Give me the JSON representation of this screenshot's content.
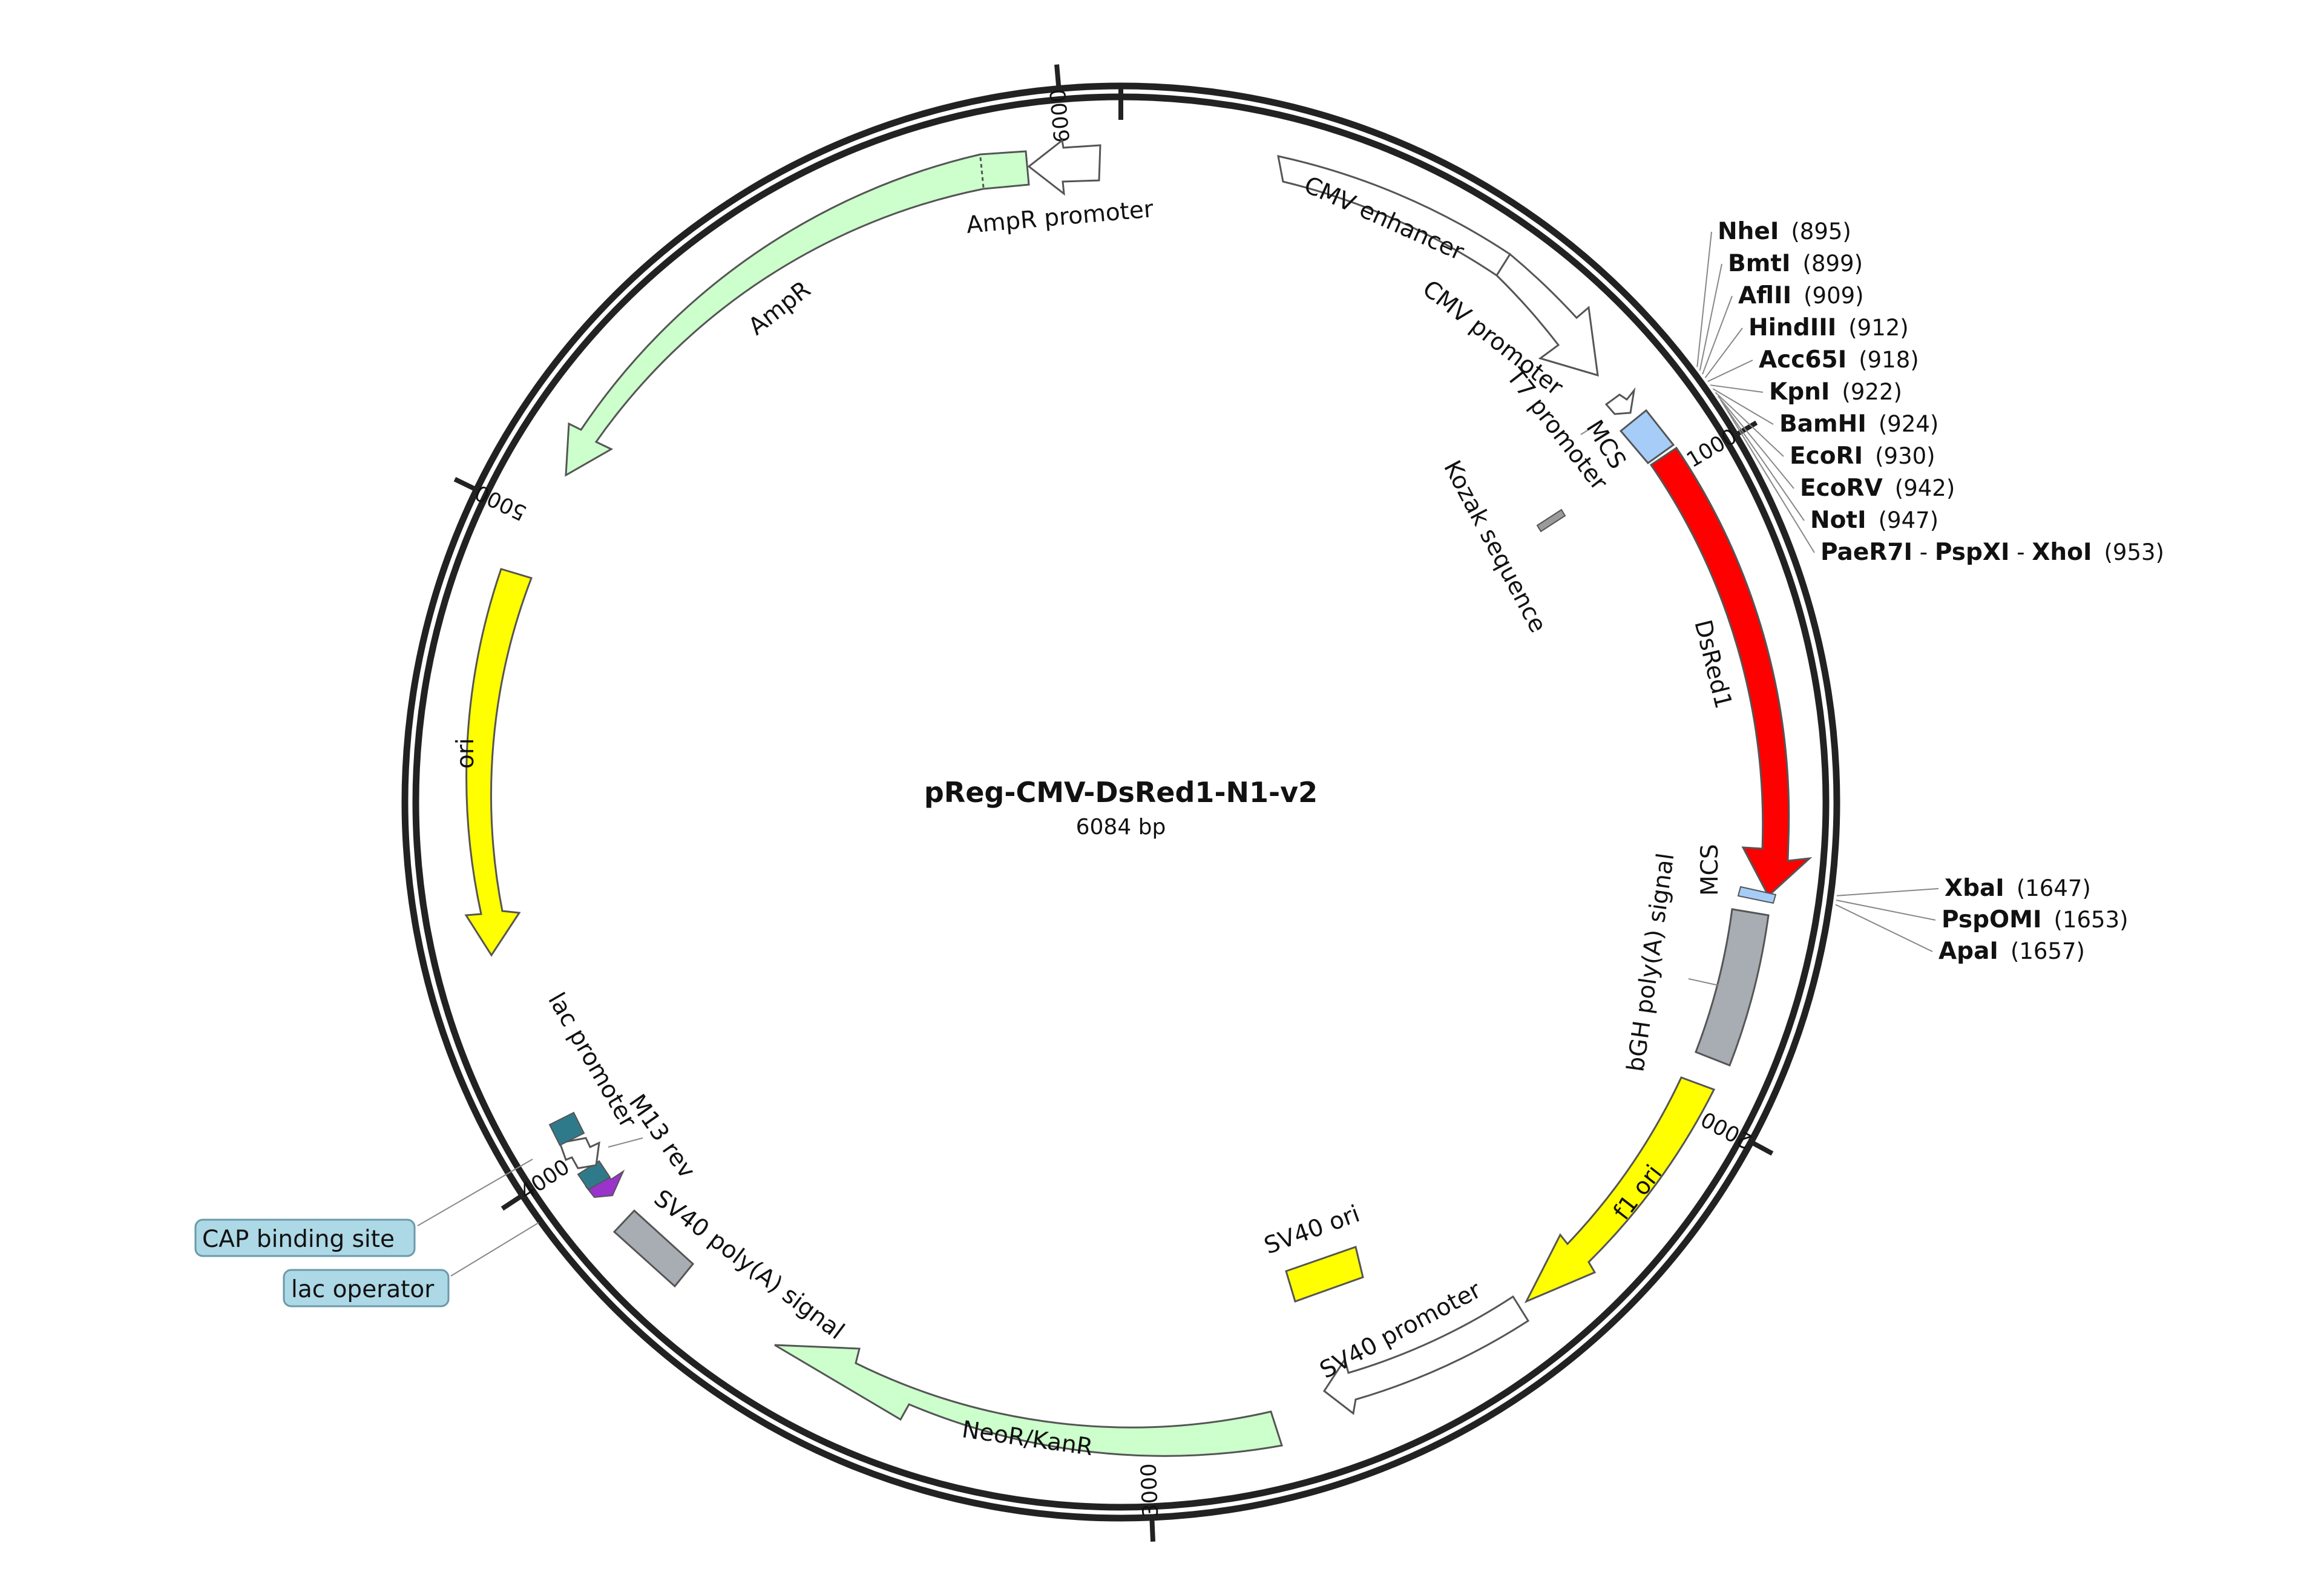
{
  "plasmid": {
    "name": "pReg-CMV-DsRed1-N1-v2",
    "size_label": "6084 bp",
    "length_bp": 6084
  },
  "ticks": [
    {
      "bp": 1000,
      "label": "1000"
    },
    {
      "bp": 2000,
      "label": "2000"
    },
    {
      "bp": 3000,
      "label": "3000"
    },
    {
      "bp": 4000,
      "label": "4000"
    },
    {
      "bp": 5000,
      "label": "5000"
    },
    {
      "bp": 6000,
      "label": "6000"
    }
  ],
  "features": [
    {
      "name": "CMV enhancer",
      "color": "#ffffff"
    },
    {
      "name": "CMV promoter",
      "color": "#ffffff"
    },
    {
      "name": "T7 promoter",
      "color": "#ffffff"
    },
    {
      "name": "MCS",
      "color": "#a6cdf7"
    },
    {
      "name": "Kozak sequence",
      "color": "#9a9a9a"
    },
    {
      "name": "DsRed1",
      "color": "#ff0000"
    },
    {
      "name": "MCS",
      "color": "#a6cdf7"
    },
    {
      "name": "bGH poly(A) signal",
      "color": "#a8adb3"
    },
    {
      "name": "f1 ori",
      "color": "#ffff00"
    },
    {
      "name": "SV40 promoter",
      "color": "#ffffff"
    },
    {
      "name": "SV40 ori",
      "color": "#ffff00"
    },
    {
      "name": "NeoR/KanR",
      "color": "#ccffcc"
    },
    {
      "name": "SV40 poly(A) signal",
      "color": "#a8adb3"
    },
    {
      "name": "M13 rev",
      "color": "#9933cc"
    },
    {
      "name": "lac promoter",
      "color": "#ffffff"
    },
    {
      "name": "lac operator",
      "color": "#2e7a8a"
    },
    {
      "name": "CAP binding site",
      "color": "#2e7a8a"
    },
    {
      "name": "ori",
      "color": "#ffff00"
    },
    {
      "name": "AmpR",
      "color": "#ccffcc"
    },
    {
      "name": "AmpR promoter",
      "color": "#ffffff"
    }
  ],
  "enzymes_top": [
    {
      "parts": [
        {
          "name": "NheI"
        }
      ],
      "pos": "(895)"
    },
    {
      "parts": [
        {
          "name": "BmtI"
        }
      ],
      "pos": "(899)"
    },
    {
      "parts": [
        {
          "name": "AflII"
        }
      ],
      "pos": "(909)"
    },
    {
      "parts": [
        {
          "name": "HindIII"
        }
      ],
      "pos": "(912)"
    },
    {
      "parts": [
        {
          "name": "Acc65I"
        }
      ],
      "pos": "(918)"
    },
    {
      "parts": [
        {
          "name": "KpnI"
        }
      ],
      "pos": "(922)"
    },
    {
      "parts": [
        {
          "name": "BamHI"
        }
      ],
      "pos": "(924)"
    },
    {
      "parts": [
        {
          "name": "EcoRI"
        }
      ],
      "pos": "(930)"
    },
    {
      "parts": [
        {
          "name": "EcoRV"
        }
      ],
      "pos": "(942)"
    },
    {
      "parts": [
        {
          "name": "NotI"
        }
      ],
      "pos": "(947)"
    },
    {
      "parts": [
        {
          "name": "PaeR7I"
        },
        {
          "name": "PspXI"
        },
        {
          "name": "XhoI"
        }
      ],
      "separator": " - ",
      "pos": "(953)"
    }
  ],
  "enzymes_mid": [
    {
      "parts": [
        {
          "name": "XbaI"
        }
      ],
      "pos": "(1647)"
    },
    {
      "parts": [
        {
          "name": "PspOMI"
        }
      ],
      "pos": "(1653)"
    },
    {
      "parts": [
        {
          "name": "ApaI"
        }
      ],
      "pos": "(1657)"
    }
  ],
  "boxed_labels": [
    {
      "text": "CAP binding site"
    },
    {
      "text": "lac operator"
    }
  ]
}
